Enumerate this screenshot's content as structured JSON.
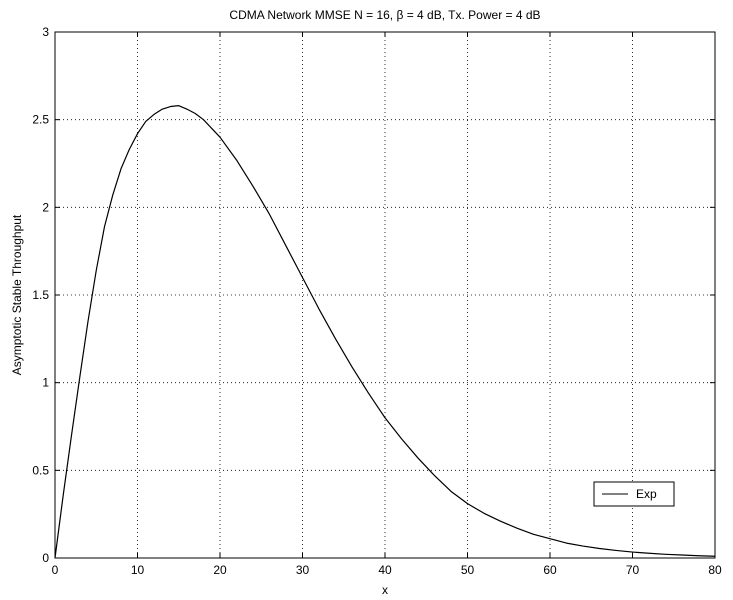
{
  "chart_data": {
    "type": "line",
    "title": "CDMA Network MMSE N = 16, β = 4 dB, Tx. Power = 4 dB",
    "xlabel": "x",
    "ylabel": "Asymptotic Stable Throughput",
    "xlim": [
      0,
      80
    ],
    "ylim": [
      0,
      3
    ],
    "xticks": [
      0,
      10,
      20,
      30,
      40,
      50,
      60,
      70,
      80
    ],
    "yticks": [
      0,
      0.5,
      1,
      1.5,
      2,
      2.5,
      3
    ],
    "xtick_labels": [
      "0",
      "10",
      "20",
      "30",
      "40",
      "50",
      "60",
      "70",
      "80"
    ],
    "ytick_labels": [
      "0",
      "0.5",
      "1",
      "1.5",
      "2",
      "2.5",
      "3"
    ],
    "grid": true,
    "legend_position": "bottom-right",
    "series": [
      {
        "name": "Exp",
        "color": "#000000",
        "x": [
          0,
          1,
          2,
          3,
          4,
          5,
          6,
          7,
          8,
          9,
          10,
          11,
          12,
          13,
          14,
          15,
          16,
          17,
          18,
          19,
          20,
          22,
          24,
          26,
          28,
          30,
          32,
          34,
          36,
          38,
          40,
          42,
          44,
          46,
          48,
          50,
          52,
          54,
          56,
          58,
          60,
          62,
          64,
          66,
          68,
          70,
          72,
          74,
          76,
          78,
          80
        ],
        "y": [
          0,
          0.36,
          0.7,
          1.03,
          1.35,
          1.64,
          1.89,
          2.07,
          2.22,
          2.33,
          2.42,
          2.49,
          2.53,
          2.56,
          2.575,
          2.58,
          2.56,
          2.535,
          2.5,
          2.45,
          2.4,
          2.27,
          2.12,
          1.96,
          1.78,
          1.6,
          1.42,
          1.25,
          1.09,
          0.94,
          0.8,
          0.68,
          0.57,
          0.47,
          0.38,
          0.31,
          0.255,
          0.21,
          0.17,
          0.135,
          0.11,
          0.085,
          0.068,
          0.054,
          0.043,
          0.034,
          0.027,
          0.021,
          0.017,
          0.013,
          0.01
        ]
      }
    ]
  }
}
